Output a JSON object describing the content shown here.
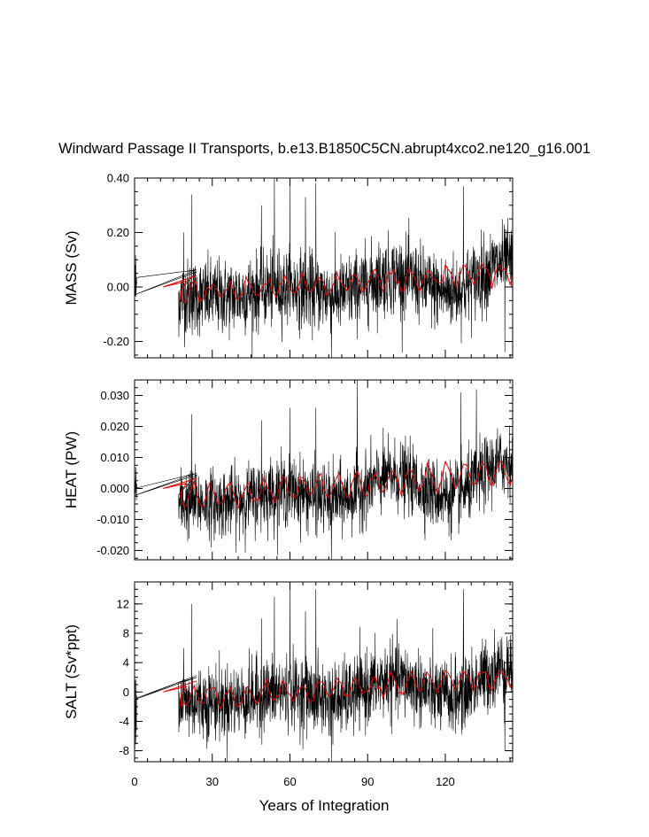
{
  "chart_data": {
    "type": "line",
    "title": "Windward Passage II Transports, b.e13.B1850C5CN.abrupt4xco2.ne120_g16.001",
    "xlabel": "Years of Integration",
    "xlim": [
      0,
      146
    ],
    "x_ticks": [
      "0",
      "30",
      "60",
      "90",
      "120"
    ],
    "x_tick_values": [
      0,
      30,
      60,
      90,
      120
    ],
    "colors": {
      "monthly": "#000000",
      "annual": "#e60000"
    },
    "panels": [
      {
        "ylabel": "MASS (Sv)",
        "ylim": [
          -0.26,
          0.4
        ],
        "y_ticks": [
          "0.40",
          "0.20",
          "0.00",
          "-0.20"
        ],
        "y_tick_values": [
          0.4,
          0.2,
          0.0,
          -0.2
        ],
        "monthly_std": 0.07,
        "annual_mean_range": [
          -0.04,
          0.09
        ],
        "spikes": [
          [
            19,
            0.2
          ],
          [
            22,
            0.34
          ],
          [
            49,
            0.3
          ],
          [
            54,
            0.4
          ],
          [
            60,
            0.38
          ],
          [
            66,
            0.33
          ],
          [
            70,
            0.38
          ],
          [
            76,
            -0.26
          ],
          [
            127,
            0.37
          ],
          [
            143,
            -0.24
          ]
        ]
      },
      {
        "ylabel": "HEAT (PW)",
        "ylim": [
          -0.023,
          0.035
        ],
        "y_ticks": [
          "0.030",
          "0.020",
          "0.010",
          "0.000",
          "-0.010",
          "-0.020"
        ],
        "y_tick_values": [
          0.03,
          0.02,
          0.01,
          0.0,
          -0.01,
          -0.02
        ],
        "monthly_std": 0.0055,
        "annual_mean_range": [
          -0.005,
          0.009
        ],
        "spikes": [
          [
            22,
            0.024
          ],
          [
            49,
            0.022
          ],
          [
            60,
            0.026
          ],
          [
            70,
            0.026
          ],
          [
            86,
            0.035
          ],
          [
            126,
            0.031
          ],
          [
            132,
            0.032
          ],
          [
            76,
            -0.023
          ]
        ]
      },
      {
        "ylabel": "SALT (Sv*ppt)",
        "ylim": [
          -9.5,
          15
        ],
        "y_ticks": [
          "12",
          "8",
          "4",
          "0",
          "-4",
          "-8"
        ],
        "y_tick_values": [
          12,
          8,
          4,
          0,
          -4,
          -8
        ],
        "monthly_std": 2.5,
        "annual_mean_range": [
          -1.5,
          3.5
        ],
        "spikes": [
          [
            19,
            6
          ],
          [
            22,
            12
          ],
          [
            49,
            10
          ],
          [
            54,
            13
          ],
          [
            60,
            15
          ],
          [
            66,
            11
          ],
          [
            70,
            14
          ],
          [
            76,
            -9.5
          ],
          [
            127,
            14
          ],
          [
            143,
            -8
          ]
        ]
      }
    ]
  }
}
